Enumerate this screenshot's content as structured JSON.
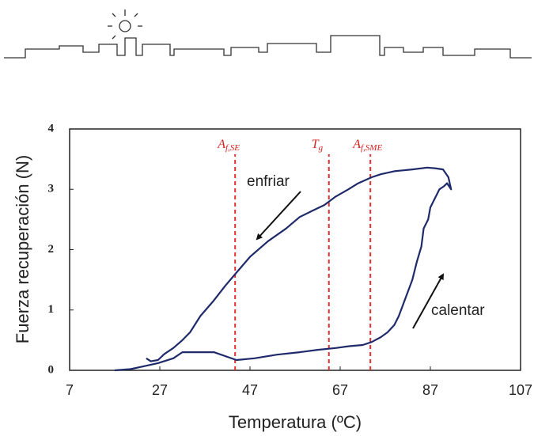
{
  "chart_data": {
    "type": "line",
    "xlabel": "Temperatura (ºC)",
    "ylabel": "Fuerza recuperación (N)",
    "xlim": [
      7,
      107
    ],
    "ylim": [
      0,
      4
    ],
    "xticks": [
      7,
      27,
      47,
      67,
      87,
      107
    ],
    "yticks": [
      0,
      1,
      2,
      3,
      4
    ],
    "color": "#1f2a6b",
    "x": [
      17,
      20.5,
      23,
      26.6,
      30,
      32,
      35,
      39,
      44,
      48,
      53,
      58,
      62,
      66,
      69,
      72,
      74,
      76,
      77.5,
      79,
      80,
      81,
      82,
      83,
      84,
      85,
      85.5,
      86.5,
      87,
      88,
      89,
      90,
      90.7,
      91.6,
      91,
      89.8,
      88,
      86.3,
      83,
      79,
      76,
      74,
      71,
      68.8,
      66,
      63.5,
      61,
      58,
      55,
      51,
      47,
      44,
      41.5,
      39,
      36,
      33.7,
      32,
      30,
      28,
      26.6,
      25,
      24
    ],
    "values": [
      0,
      0.02,
      0.06,
      0.12,
      0.2,
      0.3,
      0.3,
      0.3,
      0.17,
      0.2,
      0.26,
      0.3,
      0.34,
      0.37,
      0.4,
      0.42,
      0.47,
      0.55,
      0.63,
      0.75,
      0.9,
      1.1,
      1.3,
      1.5,
      1.8,
      2.05,
      2.35,
      2.5,
      2.7,
      2.85,
      3.0,
      3.05,
      3.1,
      3.0,
      3.2,
      3.33,
      3.35,
      3.36,
      3.33,
      3.3,
      3.25,
      3.2,
      3.1,
      3.0,
      2.88,
      2.74,
      2.65,
      2.54,
      2.35,
      2.14,
      1.88,
      1.62,
      1.4,
      1.16,
      0.9,
      0.63,
      0.5,
      0.37,
      0.27,
      0.17,
      0.15,
      0.2
    ],
    "reference_lines": [
      {
        "x": 43.7,
        "symbol": "A",
        "subscript": "f,SE"
      },
      {
        "x": 64.5,
        "symbol": "T",
        "subscript": "g"
      },
      {
        "x": 73.7,
        "symbol": "A",
        "subscript": "f,SME"
      }
    ],
    "annotations": [
      {
        "text": "enfriar"
      },
      {
        "text": "calentar"
      }
    ]
  }
}
